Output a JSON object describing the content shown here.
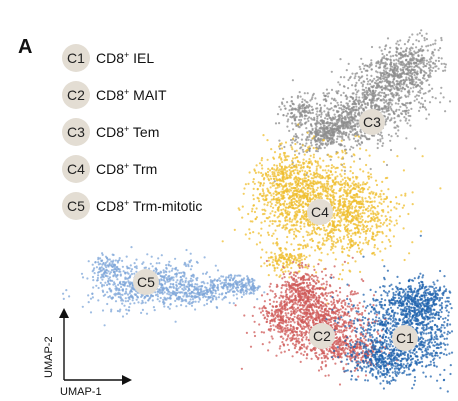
{
  "chart_data": {
    "type": "scatter",
    "panel_label": "A",
    "xlabel": "UMAP-1",
    "ylabel": "UMAP-2",
    "badge_color": "#e3ddd3",
    "clusters": [
      {
        "id": "C1",
        "prefix": "CD8",
        "suffix": " IEL",
        "color": "#1f63ae"
      },
      {
        "id": "C2",
        "prefix": "CD8",
        "suffix": " MAIT",
        "color": "#cf5a58"
      },
      {
        "id": "C3",
        "prefix": "CD8",
        "suffix": " Tem",
        "color": "#8e8e8e"
      },
      {
        "id": "C4",
        "prefix": "CD8",
        "suffix": " Trm",
        "color": "#efbd2e"
      },
      {
        "id": "C5",
        "prefix": "CD8",
        "suffix": " Trm-mitotic",
        "color": "#7ea6d8"
      }
    ]
  }
}
